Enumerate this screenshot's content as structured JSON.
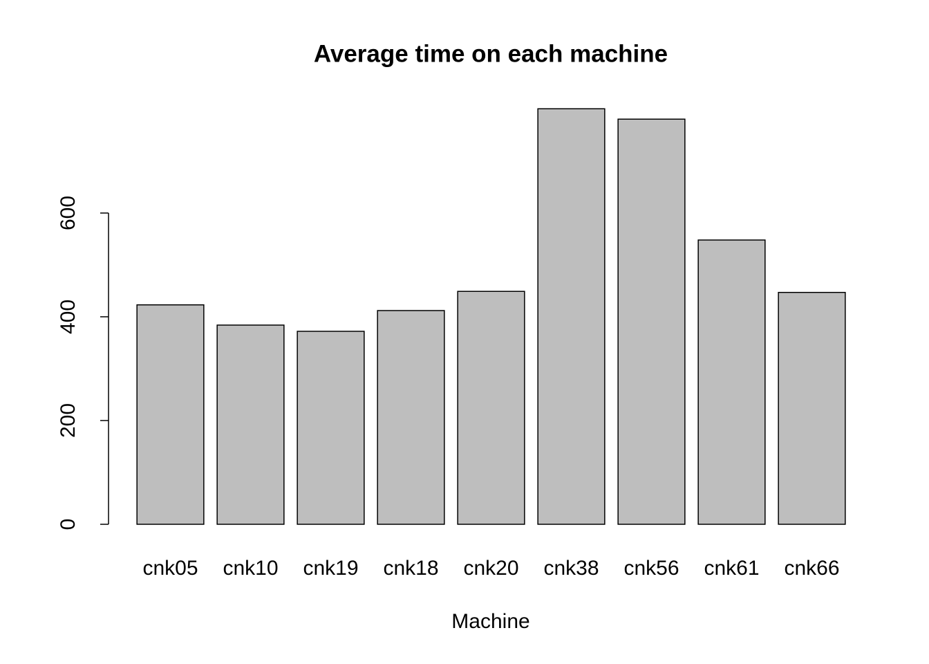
{
  "chart_data": {
    "type": "bar",
    "title": "Average time on each machine",
    "x_label": "Machine",
    "categories": [
      "cnk05",
      "cnk10",
      "cnk19",
      "cnk18",
      "cnk20",
      "cnk38",
      "cnk56",
      "cnk61",
      "cnk66"
    ],
    "values": [
      423,
      384,
      372,
      412,
      449,
      801,
      781,
      548,
      447
    ],
    "color": "#bebebe",
    "ylim": [
      0,
      833
    ],
    "yticks": [
      0,
      200,
      400,
      600
    ],
    "grid": false
  }
}
